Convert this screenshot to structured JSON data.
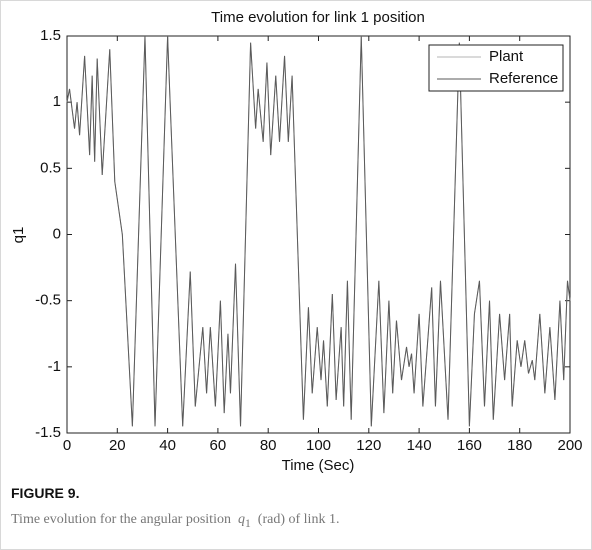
{
  "chart_data": {
    "type": "line",
    "title": "Time evolution for link 1 position",
    "xlabel": "Time (Sec)",
    "ylabel": "q1",
    "xlim": [
      0,
      200
    ],
    "xticks": [
      0,
      20,
      40,
      60,
      80,
      100,
      120,
      140,
      160,
      180,
      200
    ],
    "ylim": [
      -1.5,
      1.5
    ],
    "yticks": [
      -1.5,
      -1,
      -0.5,
      0,
      0.5,
      1,
      1.5
    ],
    "grid": false,
    "legend": "upper right",
    "x": [
      0,
      1,
      3,
      4,
      5,
      7,
      9,
      10,
      11,
      12,
      14,
      17,
      19,
      22,
      26,
      31,
      35,
      40,
      41,
      46,
      49,
      51,
      54,
      55.5,
      57,
      59,
      61,
      62.5,
      64,
      65,
      67,
      69,
      73,
      75,
      76,
      78,
      79.5,
      81,
      83,
      84.5,
      86.5,
      88,
      89.5,
      94,
      96,
      97.5,
      99.5,
      101,
      102,
      103.5,
      105.5,
      107,
      109,
      110,
      111.5,
      113,
      117,
      121,
      124,
      126,
      128,
      129.5,
      131,
      133,
      135,
      136,
      137,
      138,
      140,
      141.5,
      145,
      146.5,
      148.5,
      151.5,
      156,
      160,
      162,
      164,
      166,
      168,
      169.5,
      172,
      174,
      176,
      177,
      179,
      180.5,
      182,
      183.5,
      185,
      186,
      188,
      190,
      192,
      194,
      196,
      197.5,
      199,
      200
    ],
    "series": [
      {
        "name": "Plant",
        "color": "#b4b4b4",
        "values": [
          1.0,
          1.1,
          0.8,
          1.0,
          0.75,
          1.35,
          0.6,
          1.2,
          0.55,
          1.33,
          0.45,
          1.4,
          0.4,
          0.0,
          -1.45,
          1.5,
          -1.45,
          1.5,
          1.0,
          -1.45,
          -0.28,
          -1.3,
          -0.7,
          -1.2,
          -0.7,
          -1.3,
          -0.5,
          -1.35,
          -0.75,
          -1.2,
          -0.22,
          -1.45,
          1.45,
          0.8,
          1.1,
          0.7,
          1.3,
          0.6,
          1.2,
          0.7,
          1.35,
          0.7,
          1.2,
          -1.4,
          -0.55,
          -1.2,
          -0.7,
          -1.1,
          -0.8,
          -1.3,
          -0.45,
          -1.25,
          -0.7,
          -1.3,
          -0.35,
          -1.4,
          1.5,
          -1.45,
          -0.35,
          -1.35,
          -0.5,
          -1.2,
          -0.65,
          -1.1,
          -0.85,
          -1.0,
          -0.9,
          -1.2,
          -0.6,
          -1.3,
          -0.4,
          -1.3,
          -0.35,
          -1.4,
          1.45,
          -1.45,
          -0.6,
          -0.35,
          -1.3,
          -0.5,
          -1.4,
          -0.6,
          -1.1,
          -0.6,
          -1.3,
          -0.8,
          -1.0,
          -0.8,
          -1.05,
          -0.95,
          -1.1,
          -0.6,
          -1.2,
          -0.7,
          -1.25,
          -0.5,
          -1.1,
          -0.35,
          -0.5
        ]
      },
      {
        "name": "Reference",
        "color": "#5a5a5a",
        "values": [
          1.0,
          1.1,
          0.8,
          1.0,
          0.75,
          1.35,
          0.6,
          1.2,
          0.55,
          1.33,
          0.45,
          1.4,
          0.4,
          0.0,
          -1.45,
          1.5,
          -1.45,
          1.5,
          1.0,
          -1.45,
          -0.28,
          -1.3,
          -0.7,
          -1.2,
          -0.7,
          -1.3,
          -0.5,
          -1.35,
          -0.75,
          -1.2,
          -0.22,
          -1.45,
          1.45,
          0.8,
          1.1,
          0.7,
          1.3,
          0.6,
          1.2,
          0.7,
          1.35,
          0.7,
          1.2,
          -1.4,
          -0.55,
          -1.2,
          -0.7,
          -1.1,
          -0.8,
          -1.3,
          -0.45,
          -1.25,
          -0.7,
          -1.3,
          -0.35,
          -1.4,
          1.5,
          -1.45,
          -0.35,
          -1.35,
          -0.5,
          -1.2,
          -0.65,
          -1.1,
          -0.85,
          -1.0,
          -0.9,
          -1.2,
          -0.6,
          -1.3,
          -0.4,
          -1.3,
          -0.35,
          -1.4,
          1.45,
          -1.45,
          -0.6,
          -0.35,
          -1.3,
          -0.5,
          -1.4,
          -0.6,
          -1.1,
          -0.6,
          -1.3,
          -0.8,
          -1.0,
          -0.8,
          -1.05,
          -0.95,
          -1.1,
          -0.6,
          -1.2,
          -0.7,
          -1.25,
          -0.5,
          -1.1,
          -0.35,
          -0.5
        ]
      }
    ]
  },
  "figure": {
    "label": "FIGURE 9.",
    "caption_start": "Time evolution for the angular position",
    "symbol": "q",
    "subscript": "1",
    "caption_end": "(rad) of link 1."
  }
}
